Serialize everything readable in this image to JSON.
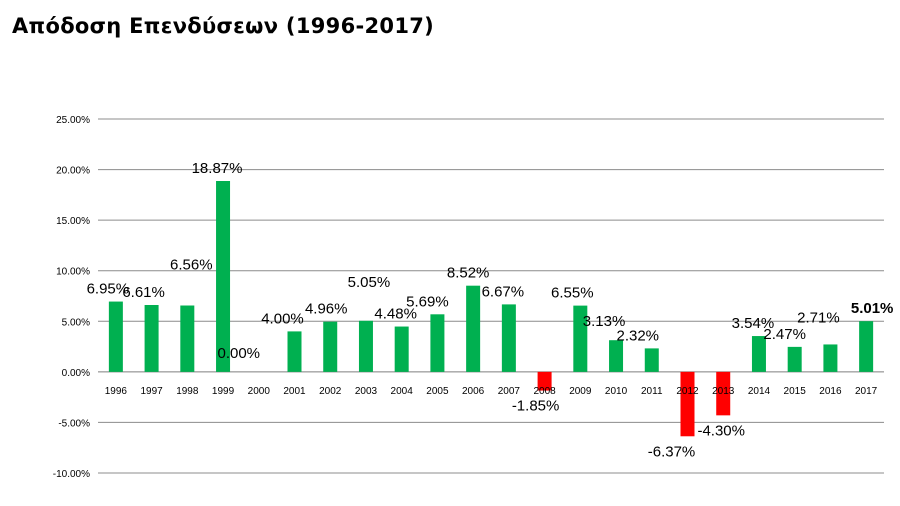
{
  "title": "Απόδοση Επενδύσεων (1996-2017)",
  "chart_data": {
    "type": "bar",
    "title": "Απόδοση Επενδύσεων (1996-2017)",
    "xlabel": "",
    "ylabel": "",
    "categories": [
      "1996",
      "1997",
      "1998",
      "1999",
      "2000",
      "2001",
      "2002",
      "2003",
      "2004",
      "2005",
      "2006",
      "2007",
      "2008",
      "2009",
      "2010",
      "2011",
      "2012",
      "2013",
      "2014",
      "2015",
      "2016",
      "2017"
    ],
    "values": [
      6.95,
      6.61,
      6.56,
      18.87,
      0.0,
      4.0,
      4.96,
      5.05,
      4.48,
      5.69,
      8.52,
      6.67,
      -1.85,
      6.55,
      3.13,
      2.32,
      -6.37,
      -4.3,
      3.54,
      2.47,
      2.71,
      5.01
    ],
    "data_labels": [
      "6.95%",
      "6.61%",
      "6.56%",
      "18.87%",
      "0.00%",
      "4.00%",
      "4.96%",
      "5.05%",
      "4.48%",
      "5.69%",
      "8.52%",
      "6.67%",
      "-1.85%",
      "6.55%",
      "3.13%",
      "2.32%",
      "-6.37%",
      "-4.30%",
      "3.54%",
      "2.47%",
      "2.71%",
      "5.01%"
    ],
    "highlighted_label": "2017",
    "y_ticks": [
      25,
      20,
      15,
      10,
      5,
      0,
      -5,
      -10
    ],
    "y_tick_labels": [
      "25.00%",
      "20.00%",
      "15.00%",
      "10.00%",
      "5.00%",
      "0.00%",
      "-5.00%",
      "-10.00%"
    ],
    "ylim": [
      -10,
      25
    ],
    "grid": true,
    "legend": "none",
    "colors": {
      "positive": "#00b050",
      "negative": "#ff0000",
      "grid": "#8c8c8c",
      "axis": "#7f7f7f"
    }
  }
}
